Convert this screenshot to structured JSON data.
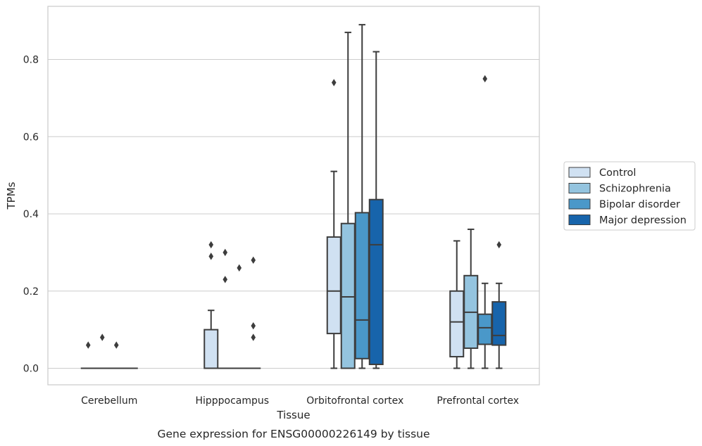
{
  "chart_data": {
    "type": "box",
    "caption": "Gene expression for ENSG00000226149 by tissue",
    "xlabel": "Tissue",
    "ylabel": "TPMs",
    "ylim": [
      -0.043,
      0.94
    ],
    "yticks": [
      0.0,
      0.2,
      0.4,
      0.6,
      0.8
    ],
    "ytick_labels": [
      "0.0",
      "0.2",
      "0.4",
      "0.6",
      "0.8"
    ],
    "grid": "horizontal",
    "legend_position": "right",
    "categories": [
      "Cerebellum",
      "Hipppocampus",
      "Orbitofrontal cortex",
      "Prefrontal cortex"
    ],
    "series": [
      {
        "name": "Control",
        "color": "#d0e1f2",
        "boxes": [
          {
            "whislo": 0,
            "q1": 0,
            "med": 0,
            "q3": 0,
            "whishi": 0,
            "fliers": [
              0.06
            ]
          },
          {
            "whislo": 0,
            "q1": 0,
            "med": 0,
            "q3": 0.1,
            "whishi": 0.15,
            "fliers": [
              0.32,
              0.29
            ]
          },
          {
            "whislo": 0,
            "q1": 0.09,
            "med": 0.2,
            "q3": 0.34,
            "whishi": 0.51,
            "fliers": [
              0.74
            ]
          },
          {
            "whislo": 0,
            "q1": 0.03,
            "med": 0.12,
            "q3": 0.2,
            "whishi": 0.33,
            "fliers": []
          }
        ]
      },
      {
        "name": "Schizophrenia",
        "color": "#94c4df",
        "boxes": [
          {
            "whislo": 0,
            "q1": 0,
            "med": 0,
            "q3": 0,
            "whishi": 0,
            "fliers": [
              0.08
            ]
          },
          {
            "whislo": 0,
            "q1": 0,
            "med": 0,
            "q3": 0,
            "whishi": 0,
            "fliers": [
              0.3,
              0.23
            ]
          },
          {
            "whislo": 0,
            "q1": 0,
            "med": 0.185,
            "q3": 0.375,
            "whishi": 0.87,
            "fliers": []
          },
          {
            "whislo": 0,
            "q1": 0.052,
            "med": 0.145,
            "q3": 0.24,
            "whishi": 0.36,
            "fliers": []
          }
        ]
      },
      {
        "name": "Bipolar disorder",
        "color": "#4a98c9",
        "boxes": [
          {
            "whislo": 0,
            "q1": 0,
            "med": 0,
            "q3": 0,
            "whishi": 0,
            "fliers": [
              0.06
            ]
          },
          {
            "whislo": 0,
            "q1": 0,
            "med": 0,
            "q3": 0,
            "whishi": 0,
            "fliers": [
              0.26
            ]
          },
          {
            "whislo": 0,
            "q1": 0.025,
            "med": 0.125,
            "q3": 0.403,
            "whishi": 0.89,
            "fliers": []
          },
          {
            "whislo": 0,
            "q1": 0.062,
            "med": 0.105,
            "q3": 0.14,
            "whishi": 0.22,
            "fliers": [
              0.75
            ]
          }
        ]
      },
      {
        "name": "Major depression",
        "color": "#1764ab",
        "boxes": [
          {
            "whislo": 0,
            "q1": 0,
            "med": 0,
            "q3": 0,
            "whishi": 0,
            "fliers": []
          },
          {
            "whislo": 0,
            "q1": 0,
            "med": 0,
            "q3": 0,
            "whishi": 0,
            "fliers": [
              0.28,
              0.11,
              0.08
            ]
          },
          {
            "whislo": 0,
            "q1": 0.01,
            "med": 0.32,
            "q3": 0.437,
            "whishi": 0.82,
            "fliers": []
          },
          {
            "whislo": 0,
            "q1": 0.06,
            "med": 0.085,
            "q3": 0.172,
            "whishi": 0.22,
            "fliers": [
              0.32
            ]
          }
        ]
      }
    ]
  }
}
